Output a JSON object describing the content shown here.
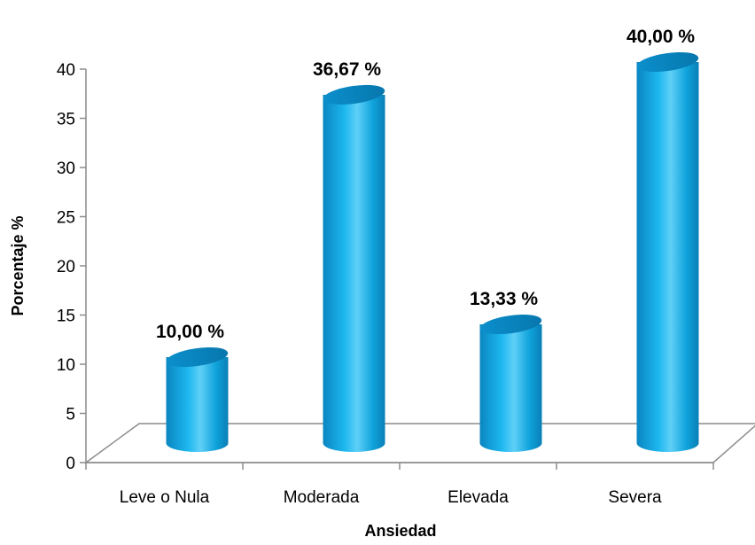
{
  "chart_data": {
    "type": "bar",
    "title": "",
    "xlabel": "Ansiedad",
    "ylabel": "Porcentaje %",
    "ylim": [
      0,
      40
    ],
    "yticks": [
      0,
      5,
      10,
      15,
      20,
      25,
      30,
      35,
      40
    ],
    "categories": [
      "Leve o Nula",
      "Moderada",
      "Elevada",
      "Severa"
    ],
    "values": [
      10.0,
      36.67,
      13.33,
      40.0
    ],
    "data_labels": [
      "10,00 %",
      "36,67 %",
      "13,33 %",
      "40,00 %"
    ],
    "bar_color": "#0fa3dc",
    "grid": false,
    "legend": "none",
    "style": "3d-cylinder"
  }
}
